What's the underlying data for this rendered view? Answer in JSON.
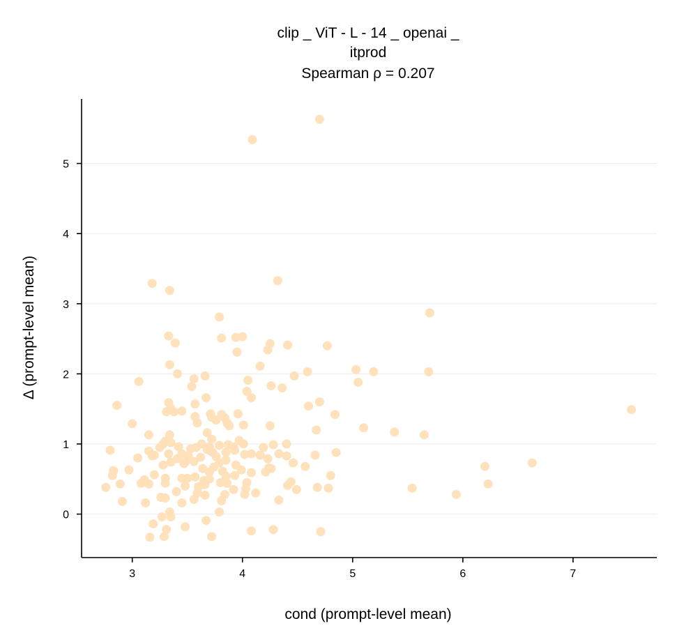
{
  "chart_data": {
    "type": "scatter",
    "title_lines": [
      "clip _ ViT - L - 14 _ openai _",
      "itprod",
      "Spearman ρ = 0.207"
    ],
    "xlabel": "cond (prompt-level mean)",
    "ylabel": "Δ (prompt-level mean)",
    "xlim": [
      2.54,
      7.76
    ],
    "ylim": [
      -0.62,
      5.92
    ],
    "xticks": [
      3,
      4,
      5,
      6,
      7
    ],
    "yticks": [
      0,
      1,
      2,
      3,
      4,
      5
    ],
    "grid": "y",
    "point_color": "#FFDFB8",
    "axis_color": "#000000",
    "grid_color": "#EBEBEB",
    "points": [
      [
        4.7,
        5.63
      ],
      [
        4.09,
        5.34
      ],
      [
        4.32,
        3.33
      ],
      [
        3.18,
        3.29
      ],
      [
        3.34,
        3.19
      ],
      [
        5.7,
        2.87
      ],
      [
        3.79,
        2.81
      ],
      [
        3.33,
        2.54
      ],
      [
        3.94,
        2.52
      ],
      [
        4.0,
        2.53
      ],
      [
        3.81,
        2.51
      ],
      [
        3.39,
        2.44
      ],
      [
        4.41,
        2.41
      ],
      [
        4.25,
        2.43
      ],
      [
        4.77,
        2.4
      ],
      [
        4.23,
        2.34
      ],
      [
        3.95,
        2.31
      ],
      [
        4.16,
        2.11
      ],
      [
        3.34,
        2.13
      ],
      [
        5.03,
        2.06
      ],
      [
        5.69,
        2.03
      ],
      [
        4.59,
        2.03
      ],
      [
        5.19,
        2.03
      ],
      [
        3.41,
        2.0
      ],
      [
        4.47,
        1.97
      ],
      [
        3.66,
        1.97
      ],
      [
        3.56,
        1.93
      ],
      [
        3.06,
        1.89
      ],
      [
        5.05,
        1.88
      ],
      [
        4.05,
        1.91
      ],
      [
        3.54,
        1.82
      ],
      [
        4.36,
        1.8
      ],
      [
        4.26,
        1.83
      ],
      [
        4.04,
        1.75
      ],
      [
        4.08,
        1.66
      ],
      [
        3.67,
        1.66
      ],
      [
        4.7,
        1.6
      ],
      [
        3.57,
        1.57
      ],
      [
        3.33,
        1.59
      ],
      [
        2.86,
        1.55
      ],
      [
        4.6,
        1.54
      ],
      [
        3.35,
        1.51
      ],
      [
        3.45,
        1.47
      ],
      [
        3.31,
        1.46
      ],
      [
        3.38,
        1.46
      ],
      [
        7.53,
        1.49
      ],
      [
        3.71,
        1.43
      ],
      [
        3.81,
        1.42
      ],
      [
        4.84,
        1.42
      ],
      [
        3.57,
        1.39
      ],
      [
        3.72,
        1.38
      ],
      [
        3.96,
        1.43
      ],
      [
        3.84,
        1.37
      ],
      [
        3.76,
        1.34
      ],
      [
        3.59,
        1.3
      ],
      [
        3.86,
        1.3
      ],
      [
        4.01,
        1.27
      ],
      [
        3.0,
        1.29
      ],
      [
        4.25,
        1.26
      ],
      [
        5.1,
        1.23
      ],
      [
        3.88,
        1.26
      ],
      [
        4.67,
        1.2
      ],
      [
        5.38,
        1.17
      ],
      [
        3.68,
        1.16
      ],
      [
        3.15,
        1.13
      ],
      [
        3.34,
        1.13
      ],
      [
        5.65,
        1.13
      ],
      [
        3.72,
        1.07
      ],
      [
        3.97,
        1.05
      ],
      [
        3.3,
        1.04
      ],
      [
        3.28,
        1.0
      ],
      [
        3.35,
        1.02
      ],
      [
        4.4,
        1.0
      ],
      [
        3.63,
        1.0
      ],
      [
        4.01,
        1.0
      ],
      [
        3.87,
        0.99
      ],
      [
        4.28,
        0.99
      ],
      [
        3.79,
        0.98
      ],
      [
        3.7,
        0.96
      ],
      [
        3.58,
        0.95
      ],
      [
        3.92,
        0.96
      ],
      [
        3.25,
        0.95
      ],
      [
        3.42,
        0.96
      ],
      [
        3.53,
        0.93
      ],
      [
        4.19,
        0.95
      ],
      [
        3.68,
        0.92
      ],
      [
        3.93,
        0.91
      ],
      [
        3.71,
        0.9
      ],
      [
        2.8,
        0.91
      ],
      [
        3.15,
        0.9
      ],
      [
        3.85,
        0.88
      ],
      [
        3.33,
        0.86
      ],
      [
        4.33,
        0.86
      ],
      [
        4.85,
        0.88
      ],
      [
        3.73,
        0.88
      ],
      [
        3.45,
        0.86
      ],
      [
        3.2,
        0.84
      ],
      [
        3.51,
        0.83
      ],
      [
        4.08,
        0.86
      ],
      [
        4.16,
        0.84
      ],
      [
        4.02,
        0.85
      ],
      [
        3.76,
        0.82
      ],
      [
        3.62,
        0.81
      ],
      [
        3.18,
        0.83
      ],
      [
        4.4,
        0.83
      ],
      [
        4.66,
        0.84
      ],
      [
        3.05,
        0.8
      ],
      [
        4.23,
        0.79
      ],
      [
        3.41,
        0.79
      ],
      [
        3.85,
        0.77
      ],
      [
        3.48,
        0.74
      ],
      [
        3.56,
        0.75
      ],
      [
        3.35,
        0.74
      ],
      [
        3.79,
        0.73
      ],
      [
        4.46,
        0.73
      ],
      [
        6.63,
        0.73
      ],
      [
        3.94,
        0.7
      ],
      [
        3.28,
        0.7
      ],
      [
        3.47,
        0.72
      ],
      [
        4.57,
        0.68
      ],
      [
        6.2,
        0.68
      ],
      [
        3.74,
        0.67
      ],
      [
        4.24,
        0.66
      ],
      [
        3.64,
        0.65
      ],
      [
        4.26,
        0.65
      ],
      [
        2.97,
        0.63
      ],
      [
        2.83,
        0.62
      ],
      [
        3.82,
        0.61
      ],
      [
        3.7,
        0.6
      ],
      [
        3.99,
        0.63
      ],
      [
        4.08,
        0.59
      ],
      [
        4.21,
        0.6
      ],
      [
        3.2,
        0.56
      ],
      [
        2.82,
        0.55
      ],
      [
        3.93,
        0.55
      ],
      [
        3.85,
        0.54
      ],
      [
        4.8,
        0.55
      ],
      [
        3.57,
        0.53
      ],
      [
        3.3,
        0.51
      ],
      [
        3.45,
        0.51
      ],
      [
        3.11,
        0.49
      ],
      [
        3.5,
        0.51
      ],
      [
        3.7,
        0.5
      ],
      [
        3.65,
        0.48
      ],
      [
        3.12,
        0.46
      ],
      [
        3.8,
        0.45
      ],
      [
        4.04,
        0.45
      ],
      [
        3.3,
        0.44
      ],
      [
        3.86,
        0.44
      ],
      [
        4.44,
        0.46
      ],
      [
        3.08,
        0.44
      ],
      [
        3.15,
        0.43
      ],
      [
        2.89,
        0.43
      ],
      [
        3.66,
        0.42
      ],
      [
        4.41,
        0.41
      ],
      [
        3.48,
        0.4
      ],
      [
        3.6,
        0.39
      ],
      [
        4.78,
        0.37
      ],
      [
        4.68,
        0.38
      ],
      [
        2.76,
        0.38
      ],
      [
        5.54,
        0.37
      ],
      [
        4.03,
        0.36
      ],
      [
        3.92,
        0.35
      ],
      [
        4.49,
        0.35
      ],
      [
        6.23,
        0.43
      ],
      [
        3.4,
        0.32
      ],
      [
        3.59,
        0.3
      ],
      [
        3.84,
        0.28
      ],
      [
        4.12,
        0.3
      ],
      [
        5.94,
        0.28
      ],
      [
        3.66,
        0.27
      ],
      [
        4.02,
        0.28
      ],
      [
        3.26,
        0.24
      ],
      [
        3.3,
        0.23
      ],
      [
        3.56,
        0.21
      ],
      [
        4.33,
        0.2
      ],
      [
        2.91,
        0.18
      ],
      [
        3.81,
        0.19
      ],
      [
        3.45,
        0.16
      ],
      [
        3.12,
        0.16
      ],
      [
        3.34,
        0.03
      ],
      [
        3.79,
        0.03
      ],
      [
        3.27,
        -0.04
      ],
      [
        3.35,
        -0.04
      ],
      [
        3.67,
        -0.09
      ],
      [
        3.19,
        -0.14
      ],
      [
        3.48,
        -0.18
      ],
      [
        3.31,
        -0.22
      ],
      [
        4.08,
        -0.24
      ],
      [
        4.28,
        -0.22
      ],
      [
        4.71,
        -0.25
      ],
      [
        3.16,
        -0.33
      ],
      [
        3.29,
        -0.32
      ],
      [
        3.72,
        -0.32
      ]
    ]
  }
}
